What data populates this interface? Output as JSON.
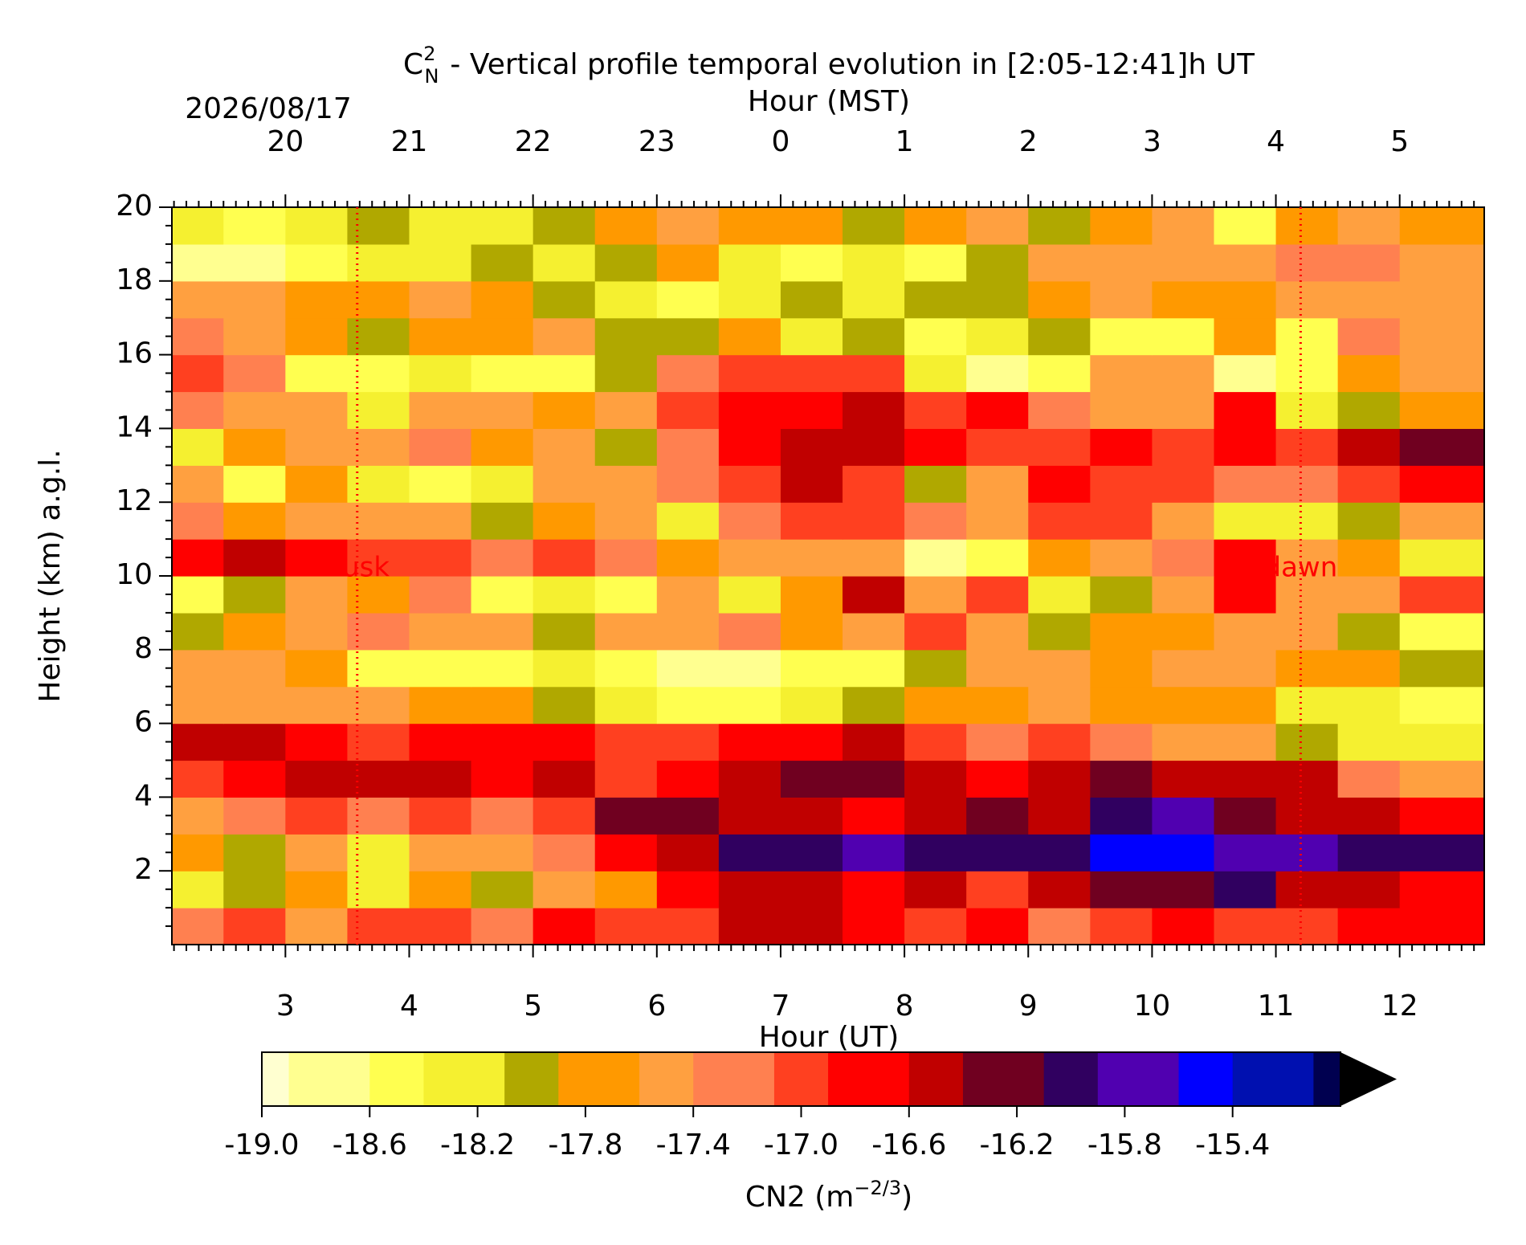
{
  "chart_data": {
    "type": "heatmap",
    "title_symbol": "C",
    "title_sup": "2",
    "title_sub": "N",
    "title": "- Vertical profile temporal evolution in [2:05-12:41]h UT",
    "date": "2026/08/17",
    "xlabel": "Hour (UT)",
    "x2label": "Hour (MST)",
    "ylabel": "Height (km) a.g.l.",
    "xlim": [
      2.083,
      12.683
    ],
    "ylim": [
      0,
      20
    ],
    "xticks": [
      3,
      4,
      5,
      6,
      7,
      8,
      9,
      10,
      11,
      12
    ],
    "x2ticks": [
      {
        "value": 3,
        "label": "20"
      },
      {
        "value": 4,
        "label": "21"
      },
      {
        "value": 5,
        "label": "22"
      },
      {
        "value": 6,
        "label": "23"
      },
      {
        "value": 7,
        "label": "0"
      },
      {
        "value": 8,
        "label": "1"
      },
      {
        "value": 9,
        "label": "2"
      },
      {
        "value": 10,
        "label": "3"
      },
      {
        "value": 11,
        "label": "4"
      },
      {
        "value": 12,
        "label": "5"
      }
    ],
    "yticks": [
      2,
      4,
      6,
      8,
      10,
      12,
      14,
      16,
      18,
      20
    ],
    "vlines": [
      {
        "x": 3.58,
        "label": "dusk",
        "color": "#ff0000"
      },
      {
        "x": 11.2,
        "label": "dawn",
        "color": "#ff0000"
      }
    ],
    "x": [
      2.25,
      2.75,
      3.25,
      3.75,
      4.25,
      4.75,
      5.25,
      5.75,
      6.25,
      6.75,
      7.25,
      7.75,
      8.25,
      8.75,
      9.25,
      9.75,
      10.25,
      10.75,
      11.25,
      11.75,
      12.25
    ],
    "y": [
      0.5,
      1.5,
      2.5,
      3.5,
      4.5,
      5.5,
      6.5,
      7.5,
      8.5,
      9.5,
      10.5,
      11.5,
      12.5,
      13.5,
      14.5,
      15.5,
      16.5,
      17.5,
      18.5,
      19.5
    ],
    "z": [
      [
        -17.3,
        -17.1,
        -17.4,
        -16.9,
        -17.0,
        -17.2,
        -16.8,
        -17.1,
        -16.9,
        -16.5,
        -16.6,
        -16.7,
        -17.0,
        -16.8,
        -17.2,
        -16.9,
        -16.7,
        -17.0,
        -16.9,
        -16.8,
        -16.7
      ],
      [
        -18.2,
        -17.9,
        -17.8,
        -18.2,
        -17.7,
        -17.9,
        -17.6,
        -17.8,
        -16.8,
        -16.5,
        -16.6,
        -16.7,
        -16.5,
        -16.9,
        -16.4,
        -16.2,
        -16.3,
        -16.0,
        -16.4,
        -16.6,
        -16.8
      ],
      [
        -17.8,
        -18.0,
        -17.6,
        -18.3,
        -17.5,
        -17.4,
        -17.2,
        -16.8,
        -16.4,
        -16.0,
        -15.9,
        -15.7,
        -15.9,
        -16.1,
        -16.0,
        -15.6,
        -15.5,
        -15.7,
        -15.8,
        -16.1,
        -15.9
      ],
      [
        -17.5,
        -17.2,
        -17.0,
        -17.3,
        -17.1,
        -17.2,
        -16.9,
        -16.2,
        -16.3,
        -16.5,
        -16.6,
        -16.7,
        -16.4,
        -16.3,
        -16.5,
        -15.9,
        -15.8,
        -16.2,
        -16.4,
        -16.6,
        -16.8
      ],
      [
        -16.9,
        -16.7,
        -16.4,
        -16.6,
        -16.5,
        -16.8,
        -16.5,
        -17.0,
        -16.7,
        -16.4,
        -16.3,
        -16.2,
        -16.5,
        -16.7,
        -16.6,
        -16.2,
        -16.4,
        -16.5,
        -16.6,
        -17.2,
        -17.6
      ],
      [
        -16.6,
        -16.5,
        -16.8,
        -16.9,
        -16.8,
        -16.7,
        -16.8,
        -17.0,
        -16.9,
        -16.8,
        -16.7,
        -16.6,
        -17.0,
        -17.2,
        -17.1,
        -17.3,
        -17.4,
        -17.6,
        -18.0,
        -18.3,
        -18.2
      ],
      [
        -17.5,
        -17.4,
        -17.6,
        -17.6,
        -17.7,
        -17.8,
        -18.0,
        -18.3,
        -18.4,
        -18.5,
        -18.3,
        -18.1,
        -17.8,
        -17.7,
        -17.6,
        -17.8,
        -17.7,
        -17.8,
        -18.3,
        -18.2,
        -18.6
      ],
      [
        -17.5,
        -17.6,
        -17.7,
        -18.5,
        -18.6,
        -18.4,
        -18.3,
        -18.6,
        -18.7,
        -18.8,
        -18.6,
        -18.5,
        -17.9,
        -17.6,
        -17.5,
        -17.8,
        -17.4,
        -17.6,
        -17.8,
        -17.7,
        -18.0
      ],
      [
        -18.1,
        -17.8,
        -17.5,
        -17.2,
        -17.6,
        -17.4,
        -17.9,
        -17.5,
        -17.6,
        -17.3,
        -17.8,
        -17.5,
        -17.1,
        -17.6,
        -18.0,
        -17.7,
        -17.8,
        -17.4,
        -17.6,
        -17.9,
        -18.4
      ],
      [
        -18.4,
        -18.0,
        -17.6,
        -17.8,
        -17.3,
        -18.4,
        -18.3,
        -18.5,
        -17.6,
        -18.3,
        -17.7,
        -16.5,
        -17.4,
        -17.1,
        -18.2,
        -17.9,
        -17.5,
        -16.8,
        -17.4,
        -17.6,
        -17.0
      ],
      [
        -16.8,
        -16.6,
        -16.7,
        -17.0,
        -16.9,
        -17.2,
        -17.1,
        -17.3,
        -17.8,
        -17.5,
        -17.6,
        -17.4,
        -18.8,
        -18.5,
        -17.7,
        -17.6,
        -17.2,
        -16.7,
        -17.6,
        -17.8,
        -18.3
      ],
      [
        -17.3,
        -17.7,
        -17.4,
        -17.6,
        -17.5,
        -18.1,
        -17.8,
        -17.4,
        -18.2,
        -17.3,
        -17.0,
        -16.9,
        -17.2,
        -17.6,
        -16.9,
        -17.1,
        -17.4,
        -18.3,
        -18.2,
        -18.1,
        -17.4
      ],
      [
        -17.4,
        -18.4,
        -17.7,
        -18.3,
        -18.4,
        -18.2,
        -17.6,
        -17.5,
        -17.3,
        -16.9,
        -16.6,
        -17.0,
        -18.0,
        -17.4,
        -16.8,
        -17.0,
        -16.9,
        -17.3,
        -17.2,
        -16.9,
        -16.7
      ],
      [
        -18.2,
        -17.8,
        -17.5,
        -17.6,
        -17.3,
        -17.8,
        -17.4,
        -18.0,
        -17.2,
        -16.8,
        -16.4,
        -16.6,
        -16.7,
        -17.0,
        -17.1,
        -16.8,
        -17.0,
        -16.7,
        -16.9,
        -16.5,
        -16.2
      ],
      [
        -17.2,
        -17.6,
        -17.5,
        -18.2,
        -17.4,
        -17.6,
        -17.7,
        -17.5,
        -17.0,
        -16.8,
        -16.7,
        -16.5,
        -16.9,
        -16.7,
        -17.2,
        -17.4,
        -17.5,
        -16.8,
        -18.3,
        -18.1,
        -17.8
      ],
      [
        -17.0,
        -17.3,
        -18.4,
        -18.6,
        -18.2,
        -18.5,
        -18.4,
        -18.1,
        -17.2,
        -16.9,
        -17.0,
        -17.1,
        -18.3,
        -18.7,
        -18.6,
        -17.5,
        -17.6,
        -18.7,
        -18.4,
        -17.8,
        -17.6
      ],
      [
        -17.2,
        -17.4,
        -17.7,
        -17.9,
        -17.7,
        -17.8,
        -17.6,
        -17.9,
        -18.0,
        -17.7,
        -18.2,
        -18.1,
        -18.5,
        -18.3,
        -18.1,
        -18.6,
        -18.5,
        -17.8,
        -18.4,
        -17.3,
        -17.4
      ],
      [
        -17.6,
        -17.6,
        -17.8,
        -17.7,
        -17.6,
        -17.7,
        -18.0,
        -18.3,
        -18.4,
        -18.2,
        -18.0,
        -18.2,
        -18.1,
        -17.9,
        -17.7,
        -17.6,
        -17.8,
        -17.7,
        -17.5,
        -17.4,
        -17.5
      ],
      [
        -18.8,
        -18.7,
        -18.5,
        -18.2,
        -18.3,
        -18.1,
        -18.2,
        -18.0,
        -17.8,
        -18.3,
        -18.5,
        -18.3,
        -18.6,
        -18.0,
        -17.6,
        -17.6,
        -17.4,
        -17.5,
        -17.3,
        -17.2,
        -17.6
      ],
      [
        -18.3,
        -18.5,
        -18.2,
        -18.0,
        -18.3,
        -18.2,
        -17.9,
        -17.8,
        -17.6,
        -17.8,
        -17.7,
        -17.9,
        -17.7,
        -17.6,
        -18.0,
        -17.7,
        -17.6,
        -18.5,
        -17.7,
        -17.5,
        -17.7
      ]
    ],
    "clim": [
      -19,
      -15
    ],
    "colors": [
      "#ffffd0",
      "#ffff90",
      "#ffff50",
      "#f5f030",
      "#b0a800",
      "#ff9900",
      "#ffa040",
      "#ff8050",
      "#ff4020",
      "#ff0000",
      "#c00000",
      "#700020",
      "#300060",
      "#5000b0",
      "#0000ff",
      "#0010b0",
      "#000050"
    ],
    "extend_color": "#000000",
    "cbar_ticks": [
      {
        "value": -19,
        "label": "-19.0"
      },
      -18.6,
      -18.2,
      -17.8,
      -17.4,
      {
        "value": -17,
        "label": "-17.0"
      },
      -16.6,
      -16.2,
      -15.8,
      -15.4
    ],
    "cbar_label": "CN2 (m",
    "cbar_label_sup": "−2/3",
    "cbar_label_close": ")"
  }
}
